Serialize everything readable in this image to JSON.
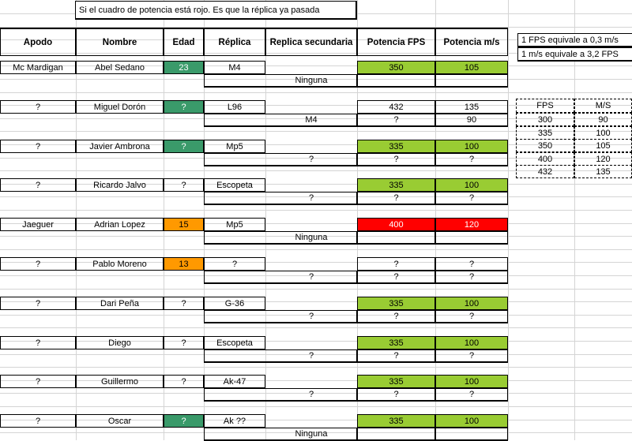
{
  "note": "Si el cuadro de potencia está rojo. Es que la réplica ya pasada",
  "headers": {
    "apodo": "Apodo",
    "nombre": "Nombre",
    "edad": "Edad",
    "replica": "Réplica",
    "replica_secundaria": "Replica secundaria",
    "potencia_fps": "Potencia FPS",
    "potencia_ms": "Potencia m/s"
  },
  "conversion": {
    "line1": "1 FPS equivale a 0,3 m/s",
    "line2": "1 m/s equivale a 3,2 FPS",
    "table_header": [
      "FPS",
      "M/S"
    ],
    "table_rows": [
      [
        "300",
        "90"
      ],
      [
        "335",
        "100"
      ],
      [
        "350",
        "105"
      ],
      [
        "400",
        "120"
      ],
      [
        "432",
        "135"
      ]
    ]
  },
  "colors": {
    "green": "#99cc33",
    "teal": "#3a9a6a",
    "orange": "#ff9900",
    "red": "#ff0000"
  },
  "players": [
    {
      "apodo": "Mc Mardigan",
      "nombre": "Abel Sedano",
      "edad": "23",
      "edad_color": "teal",
      "replica": "M4",
      "secundaria": "Ninguna",
      "fps1": "350",
      "ms1": "105",
      "fps2": "",
      "ms2": "",
      "power_color": "green"
    },
    {
      "apodo": "?",
      "nombre": "Miguel Dorón",
      "edad": "?",
      "edad_color": "teal",
      "replica": "L96",
      "secundaria": "M4",
      "fps1": "432",
      "ms1": "135",
      "fps2": "?",
      "ms2": "90",
      "power_color": "none"
    },
    {
      "apodo": "?",
      "nombre": "Javier Ambrona",
      "edad": "?",
      "edad_color": "teal",
      "replica": "Mp5",
      "secundaria": "?",
      "fps1": "335",
      "ms1": "100",
      "fps2": "?",
      "ms2": "?",
      "power_color": "green"
    },
    {
      "apodo": "?",
      "nombre": "Ricardo Jalvo",
      "edad": "?",
      "edad_color": "none",
      "replica": "Escopeta",
      "secundaria": "?",
      "fps1": "335",
      "ms1": "100",
      "fps2": "?",
      "ms2": "?",
      "power_color": "green"
    },
    {
      "apodo": "Jaeguer",
      "nombre": "Adrian Lopez",
      "edad": "15",
      "edad_color": "orange",
      "replica": "Mp5",
      "secundaria": "Ninguna",
      "fps1": "400",
      "ms1": "120",
      "fps2": "",
      "ms2": "",
      "power_color": "red"
    },
    {
      "apodo": "?",
      "nombre": "Pablo Moreno",
      "edad": "13",
      "edad_color": "orange",
      "replica": "?",
      "secundaria": "?",
      "fps1": "?",
      "ms1": "?",
      "fps2": "?",
      "ms2": "?",
      "power_color": "none"
    },
    {
      "apodo": "?",
      "nombre": "Dari Peña",
      "edad": "?",
      "edad_color": "none",
      "replica": "G-36",
      "secundaria": "?",
      "fps1": "335",
      "ms1": "100",
      "fps2": "?",
      "ms2": "?",
      "power_color": "green"
    },
    {
      "apodo": "?",
      "nombre": "Diego",
      "edad": "?",
      "edad_color": "none",
      "replica": "Escopeta",
      "secundaria": "?",
      "fps1": "335",
      "ms1": "100",
      "fps2": "?",
      "ms2": "?",
      "power_color": "green"
    },
    {
      "apodo": "?",
      "nombre": "Guillermo",
      "edad": "?",
      "edad_color": "none",
      "replica": "Ak-47",
      "secundaria": "?",
      "fps1": "335",
      "ms1": "100",
      "fps2": "?",
      "ms2": "?",
      "power_color": "green"
    },
    {
      "apodo": "?",
      "nombre": "Oscar",
      "edad": "?",
      "edad_color": "teal",
      "replica": "Ak ??",
      "secundaria": "Ninguna",
      "fps1": "335",
      "ms1": "100",
      "fps2": "",
      "ms2": "",
      "power_color": "green"
    }
  ]
}
